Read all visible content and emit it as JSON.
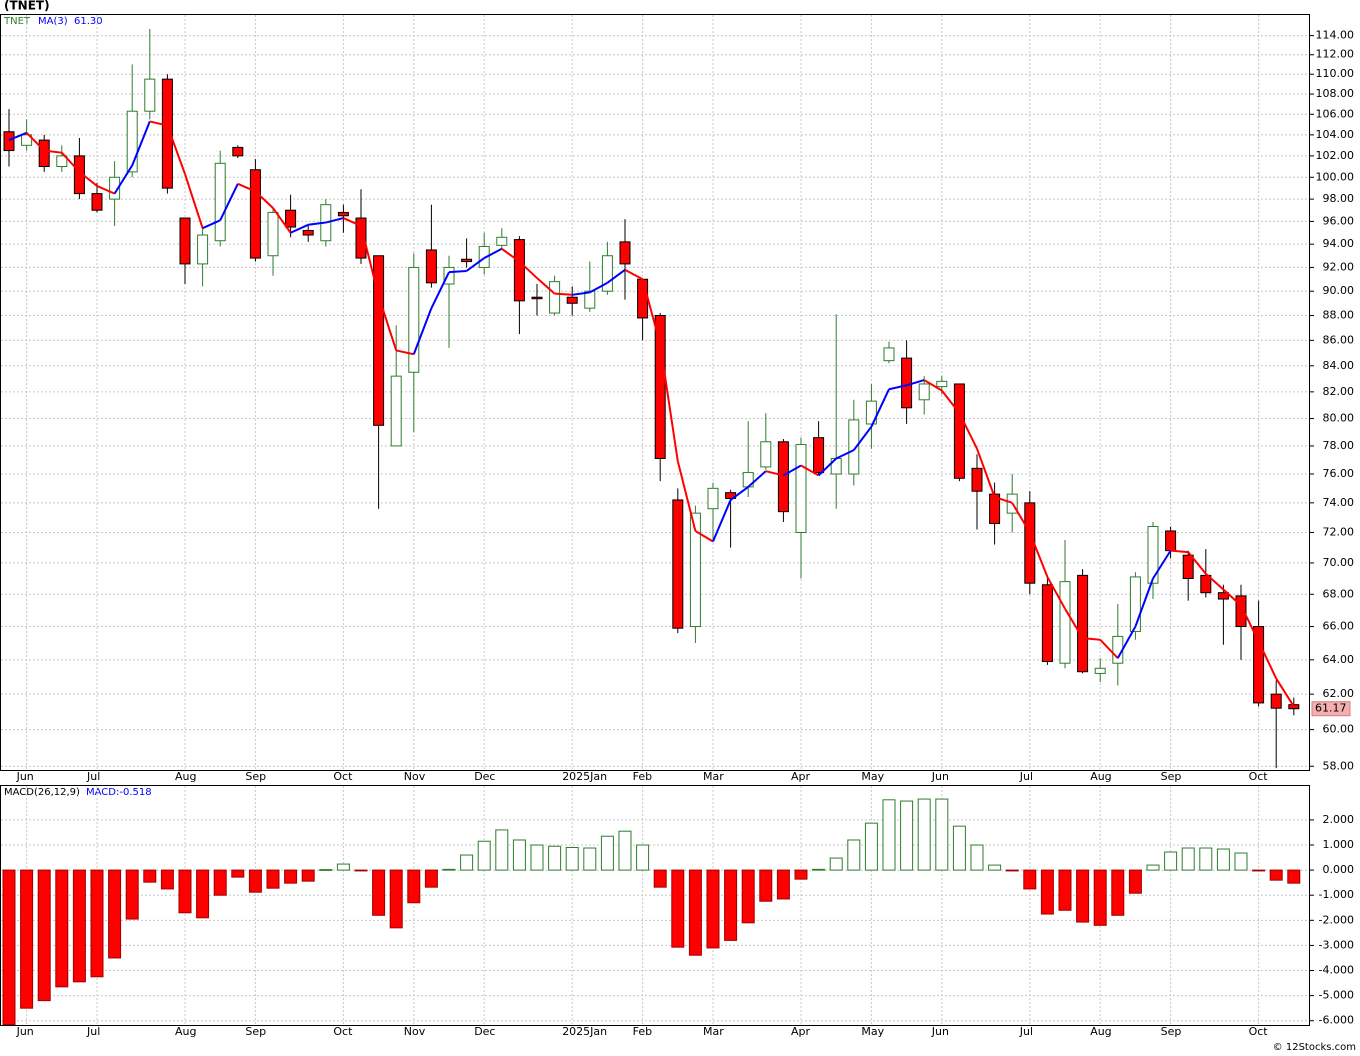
{
  "title": "(TNET)",
  "footer": "© 12Stocks.com",
  "chart_data": [
    {
      "type": "candlestick",
      "symbol": "TNET",
      "categories": [
        null,
        "Jun",
        null,
        null,
        null,
        "Jul",
        null,
        null,
        null,
        null,
        "Aug",
        null,
        null,
        null,
        "Sep",
        null,
        null,
        null,
        null,
        "Oct",
        null,
        null,
        null,
        "Nov",
        null,
        null,
        null,
        "Dec",
        null,
        null,
        null,
        null,
        "2025Jan",
        null,
        null,
        null,
        "Feb",
        null,
        null,
        null,
        "Mar",
        null,
        null,
        null,
        null,
        "Apr",
        null,
        null,
        null,
        "May",
        null,
        null,
        null,
        "Jun",
        null,
        null,
        null,
        null,
        "Jul",
        null,
        null,
        null,
        "Aug",
        null,
        null,
        null,
        "Sep",
        null,
        null,
        null,
        null,
        "Oct",
        null,
        null
      ],
      "open": [
        104.3,
        103,
        103.5,
        101,
        102,
        98.5,
        98,
        100.5,
        106.3,
        109.5,
        96.3,
        92.3,
        94.3,
        102.8,
        100.7,
        93,
        97,
        95.2,
        94.3,
        96.8,
        96.3,
        93,
        78,
        83.5,
        93.5,
        90.6,
        92.7,
        92,
        93.9,
        94.4,
        89.5,
        88.2,
        89.5,
        88.6,
        90,
        94.2,
        91,
        88,
        74.2,
        66,
        73.6,
        74.7,
        75.1,
        76.5,
        78.3,
        72,
        78.6,
        76,
        76,
        79.6,
        84.4,
        84.6,
        81.4,
        82.4,
        82.6,
        76.4,
        74.6,
        73.3,
        74,
        68.6,
        63.8,
        69.2,
        63.2,
        63.8,
        65.7,
        68.7,
        72.1,
        70.5,
        69.2,
        68.1,
        67.9,
        66,
        62,
        61.4
      ],
      "high": [
        106.5,
        105.5,
        104,
        103,
        103.7,
        99.5,
        101.5,
        111,
        114.7,
        110,
        96.3,
        95.5,
        102.5,
        103,
        101.7,
        97.2,
        98.4,
        95.7,
        98,
        97.5,
        98.9,
        93,
        87.2,
        93.2,
        97.5,
        93,
        94.5,
        95,
        95.4,
        94.7,
        90.6,
        91.3,
        90.4,
        92.5,
        94.2,
        96.2,
        91,
        88.2,
        75,
        73.8,
        75.4,
        74.9,
        79.8,
        80.4,
        78.5,
        78.6,
        79.8,
        88.1,
        81.4,
        82.6,
        85.9,
        86,
        83.2,
        83.2,
        82.6,
        77.4,
        75.4,
        76,
        74.8,
        69.2,
        71.5,
        69.6,
        64.1,
        67.4,
        69.4,
        72.7,
        72.4,
        70.8,
        70.9,
        68.6,
        68.6,
        67.6,
        62.8,
        61.8
      ],
      "low": [
        101,
        102.5,
        100.5,
        100.5,
        98,
        96.8,
        95.6,
        100,
        105.5,
        98.5,
        90.6,
        90.4,
        93.8,
        101.8,
        92.5,
        91.3,
        94.6,
        94.2,
        93.8,
        95,
        92.3,
        73.6,
        78,
        79,
        90.3,
        85.4,
        92,
        91.4,
        93.5,
        86.5,
        88,
        88,
        88,
        88.3,
        89.7,
        89.3,
        86,
        75.5,
        65.6,
        65,
        71.5,
        71,
        74.4,
        76.3,
        72.7,
        69,
        75.9,
        73.6,
        75.2,
        77.8,
        84.2,
        79.6,
        80.3,
        81.8,
        75.5,
        72.2,
        71.2,
        72,
        68,
        63.7,
        63.5,
        63.2,
        62.7,
        62.5,
        65.2,
        67.7,
        70.3,
        67.6,
        67.8,
        64.9,
        64,
        61.3,
        57.9,
        60.8
      ],
      "close": [
        102.5,
        104,
        101,
        102,
        98.5,
        97,
        100,
        106.3,
        109.5,
        99,
        92.3,
        94.8,
        101.3,
        102,
        92.8,
        96.8,
        95.5,
        94.8,
        97.5,
        96.5,
        92.8,
        79.5,
        83.2,
        92,
        90.7,
        92,
        92.5,
        93.8,
        94.6,
        89.2,
        89.4,
        90.8,
        89,
        90,
        93,
        92.3,
        87.8,
        77.1,
        65.9,
        73.3,
        75,
        74.3,
        76.1,
        78.3,
        73.4,
        78.1,
        76.1,
        77.1,
        79.9,
        81.3,
        85.4,
        80.8,
        82.6,
        82.8,
        75.7,
        74.8,
        72.6,
        74.6,
        68.7,
        63.9,
        68.8,
        63.3,
        63.5,
        65.4,
        69.1,
        72.4,
        70.8,
        69,
        68.1,
        67.7,
        66,
        61.5,
        61.2,
        61.17
      ],
      "up_color": "#2e7d2e",
      "down_color": "#ff0000",
      "series": [
        {
          "name": "MA(3)",
          "last_label": "61.30",
          "color": "#0000ff",
          "falling_color": "#ff0000",
          "values": [
            103.5,
            104.2,
            102.5,
            102.3,
            100.5,
            99.2,
            98.5,
            101.1,
            105.3,
            104.9,
            100.3,
            95.4,
            96.1,
            99.4,
            98.7,
            97.2,
            95,
            95.7,
            95.9,
            96.3,
            95.6,
            89.6,
            85.2,
            84.9,
            88.6,
            91.6,
            91.7,
            92.8,
            93.6,
            92.5,
            91.1,
            89.8,
            89.7,
            89.9,
            90.7,
            91.8,
            91,
            85.7,
            76.9,
            72.1,
            71.4,
            74.2,
            75.1,
            76.2,
            75.9,
            76.6,
            75.9,
            77.1,
            77.7,
            79.4,
            82.2,
            82.5,
            82.9,
            82.1,
            80.4,
            77.8,
            74.4,
            74,
            72,
            69.1,
            67.1,
            65.3,
            65.2,
            64.1,
            66,
            69,
            70.8,
            70.7,
            69.3,
            68.3,
            67.3,
            65.1,
            62.9,
            61.3
          ]
        }
      ],
      "log_scale": true,
      "grid": true,
      "ylim": [
        57.8,
        116.3
      ],
      "yticks": [
        {
          "value": 58,
          "label": "58.00"
        },
        {
          "value": 60,
          "label": "60.00"
        },
        {
          "value": 62,
          "label": "62.00"
        },
        {
          "value": 64,
          "label": "64.00"
        },
        {
          "value": 66,
          "label": "66.00"
        },
        {
          "value": 68,
          "label": "68.00"
        },
        {
          "value": 70,
          "label": "70.00"
        },
        {
          "value": 72,
          "label": "72.00"
        },
        {
          "value": 74,
          "label": "74.00"
        },
        {
          "value": 76,
          "label": "76.00"
        },
        {
          "value": 78,
          "label": "78.00"
        },
        {
          "value": 80,
          "label": "80.00"
        },
        {
          "value": 82,
          "label": "82.00"
        },
        {
          "value": 84,
          "label": "84.00"
        },
        {
          "value": 86,
          "label": "86.00"
        },
        {
          "value": 88,
          "label": "88.00"
        },
        {
          "value": 90,
          "label": "90.00"
        },
        {
          "value": 92,
          "label": "92.00"
        },
        {
          "value": 94,
          "label": "94.00"
        },
        {
          "value": 96,
          "label": "96.00"
        },
        {
          "value": 98,
          "label": "98.00"
        },
        {
          "value": 100,
          "label": "100.00"
        },
        {
          "value": 102,
          "label": "102.00"
        },
        {
          "value": 104,
          "label": "104.00"
        },
        {
          "value": 106,
          "label": "106.00"
        },
        {
          "value": 108,
          "label": "108.00"
        },
        {
          "value": 110,
          "label": "110.00"
        },
        {
          "value": 112,
          "label": "112.00"
        },
        {
          "value": 114,
          "label": "114.00"
        }
      ]
    },
    {
      "type": "bar",
      "title": "MACD(26,12,9)",
      "subtitle": "MACD:-0.518",
      "categories": [
        null,
        "Jun",
        null,
        null,
        null,
        "Jul",
        null,
        null,
        null,
        null,
        "Aug",
        null,
        null,
        null,
        "Sep",
        null,
        null,
        null,
        null,
        "Oct",
        null,
        null,
        null,
        "Nov",
        null,
        null,
        null,
        "Dec",
        null,
        null,
        null,
        null,
        "2025Jan",
        null,
        null,
        null,
        "Feb",
        null,
        null,
        null,
        "Mar",
        null,
        null,
        null,
        null,
        "Apr",
        null,
        null,
        null,
        "May",
        null,
        null,
        null,
        "Jun",
        null,
        null,
        null,
        null,
        "Jul",
        null,
        null,
        null,
        "Aug",
        null,
        null,
        null,
        "Sep",
        null,
        null,
        null,
        null,
        "Oct",
        null,
        null
      ],
      "values": [
        -6.15,
        -5.5,
        -5.2,
        -4.65,
        -4.45,
        -4.25,
        -3.5,
        -1.95,
        -0.48,
        -0.75,
        -1.7,
        -1.9,
        -1,
        -0.28,
        -0.88,
        -0.72,
        -0.52,
        -0.44,
        0.02,
        0.24,
        -0.02,
        -1.8,
        -2.3,
        -1.3,
        -0.68,
        0.03,
        0.6,
        1.15,
        1.6,
        1.2,
        1,
        0.95,
        0.9,
        0.88,
        1.35,
        1.55,
        1,
        -0.68,
        -3.07,
        -3.39,
        -3.1,
        -2.8,
        -2.1,
        -1.24,
        -1.15,
        -0.36,
        0.03,
        0.48,
        1.2,
        1.87,
        2.8,
        2.75,
        2.83,
        2.83,
        1.75,
        1,
        0.2,
        -0.02,
        -0.75,
        -1.75,
        -1.6,
        -2.07,
        -2.2,
        -1.8,
        -0.92,
        0.2,
        0.72,
        0.88,
        0.88,
        0.84,
        0.68,
        -0.02,
        -0.4,
        -0.52
      ],
      "up_color": "#2e7d2e",
      "down_color": "#ff0000",
      "grid": true,
      "ylim": [
        -6.17,
        3.39
      ],
      "yticks": [
        {
          "value": -6,
          "label": "-6.000"
        },
        {
          "value": -5,
          "label": "-5.000"
        },
        {
          "value": -4,
          "label": "-4.000"
        },
        {
          "value": -3,
          "label": "-3.000"
        },
        {
          "value": -2,
          "label": "-2.000"
        },
        {
          "value": -1,
          "label": "-1.000"
        },
        {
          "value": 0,
          "label": "0.000"
        },
        {
          "value": 1,
          "label": "1.000"
        },
        {
          "value": 2,
          "label": "2.000"
        }
      ]
    }
  ]
}
